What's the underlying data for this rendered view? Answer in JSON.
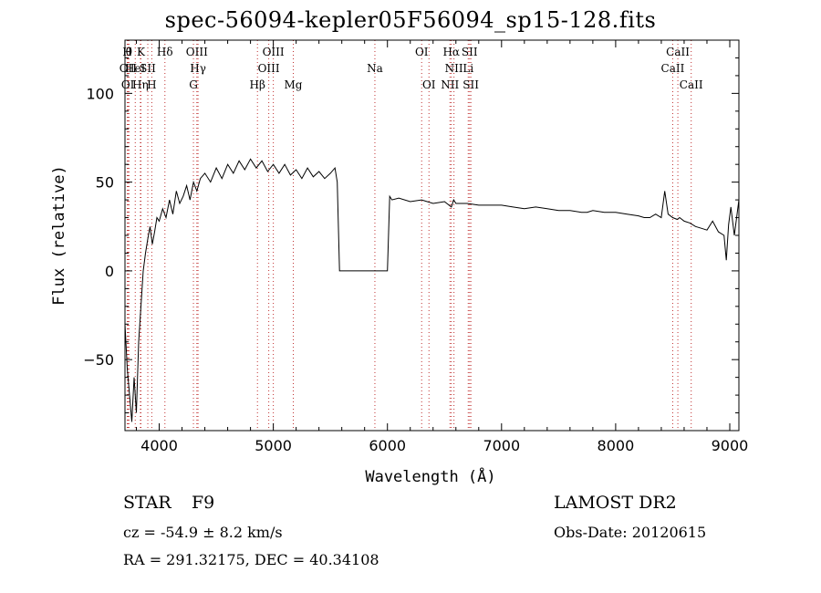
{
  "title": "spec-56094-kepler05F56094_sp15-128.fits",
  "footer": {
    "class": "STAR",
    "subclass": "F9",
    "release": "LAMOST DR2",
    "cz": "cz = -54.9 ± 8.2 km/s",
    "obs_date": "Obs-Date: 20120615",
    "radec": "RA = 291.32175, DEC =  40.34108"
  },
  "colors": {
    "line": "#000000",
    "marker": "#c03030",
    "axis": "#000000"
  },
  "chart_data": {
    "type": "line",
    "xlabel": "Wavelength (Å)",
    "ylabel": "Flux (relative)",
    "xlim": [
      3700,
      9080
    ],
    "ylim": [
      -90,
      130
    ],
    "xticks": [
      4000,
      5000,
      6000,
      7000,
      8000,
      9000
    ],
    "yticks": [
      -50,
      0,
      50,
      100
    ],
    "series": [
      {
        "x": [
          3700,
          3720,
          3740,
          3760,
          3780,
          3800,
          3820,
          3840,
          3860,
          3880,
          3900,
          3920,
          3940,
          3960,
          3980,
          4000,
          4030,
          4060,
          4090,
          4120,
          4150,
          4180,
          4210,
          4240,
          4270,
          4300,
          4330,
          4360,
          4400,
          4450,
          4500,
          4550,
          4600,
          4650,
          4700,
          4750,
          4800,
          4850,
          4900,
          4950,
          5000,
          5050,
          5100,
          5150,
          5200,
          5250,
          5300,
          5350,
          5400,
          5450,
          5500,
          5540,
          5560,
          5580,
          5600,
          5800,
          6000,
          6020,
          6040,
          6100,
          6200,
          6300,
          6400,
          6500,
          6560,
          6580,
          6600,
          6700,
          6800,
          6900,
          7000,
          7100,
          7200,
          7300,
          7400,
          7500,
          7600,
          7700,
          7750,
          7800,
          7900,
          8000,
          8100,
          8200,
          8250,
          8300,
          8350,
          8400,
          8430,
          8460,
          8500,
          8540,
          8560,
          8600,
          8650,
          8700,
          8750,
          8800,
          8850,
          8900,
          8950,
          8970,
          8990,
          9010,
          9040,
          9080
        ],
        "y": [
          -30,
          -55,
          -70,
          -85,
          -60,
          -80,
          -40,
          -20,
          0,
          10,
          18,
          25,
          15,
          22,
          30,
          28,
          35,
          30,
          40,
          32,
          45,
          38,
          42,
          48,
          40,
          50,
          45,
          52,
          55,
          50,
          58,
          52,
          60,
          55,
          62,
          57,
          63,
          58,
          62,
          56,
          60,
          55,
          60,
          54,
          57,
          52,
          58,
          53,
          56,
          52,
          55,
          58,
          50,
          0,
          0,
          0,
          0,
          42,
          40,
          41,
          39,
          40,
          38,
          39,
          36,
          40,
          38,
          38,
          37,
          37,
          37,
          36,
          35,
          36,
          35,
          34,
          34,
          33,
          33,
          34,
          33,
          33,
          32,
          31,
          30,
          30,
          32,
          30,
          45,
          32,
          30,
          29,
          30,
          28,
          27,
          25,
          24,
          23,
          28,
          22,
          20,
          6,
          26,
          36,
          20,
          40
        ]
      }
    ],
    "annotations": {
      "rows": [
        [
          {
            "label": "H",
            "wl": 3720
          },
          {
            "label": "θ",
            "wl": 3735
          },
          {
            "label": "K",
            "wl": 3840
          },
          {
            "label": "Hδ",
            "wl": 4050
          },
          {
            "label": "OIII",
            "wl": 4330
          },
          {
            "label": "OIII",
            "wl": 5000
          },
          {
            "label": "OI",
            "wl": 6300
          },
          {
            "label": "Hα",
            "wl": 6560
          },
          {
            "label": "SII",
            "wl": 6720
          },
          {
            "label": "CaII",
            "wl": 8545
          }
        ],
        [
          {
            "label": "OII",
            "wl": 3727
          },
          {
            "label": "HeI",
            "wl": 3790
          },
          {
            "label": "SII",
            "wl": 3900
          },
          {
            "label": "Hγ",
            "wl": 4340
          },
          {
            "label": "OIII",
            "wl": 4960
          },
          {
            "label": "Na",
            "wl": 5890
          },
          {
            "label": "NII",
            "wl": 6583
          },
          {
            "label": "Li",
            "wl": 6708
          },
          {
            "label": "CaII",
            "wl": 8500
          }
        ],
        [
          {
            "label": "OI",
            "wl": 3725
          },
          {
            "label": "Hη",
            "wl": 3835
          },
          {
            "label": "H",
            "wl": 3935
          },
          {
            "label": "G",
            "wl": 4300
          },
          {
            "label": "Hβ",
            "wl": 4861
          },
          {
            "label": "Mg",
            "wl": 5175
          },
          {
            "label": "OI",
            "wl": 6364
          },
          {
            "label": "NII",
            "wl": 6548
          },
          {
            "label": "SII",
            "wl": 6731
          },
          {
            "label": "CaII",
            "wl": 8662
          }
        ]
      ]
    }
  }
}
